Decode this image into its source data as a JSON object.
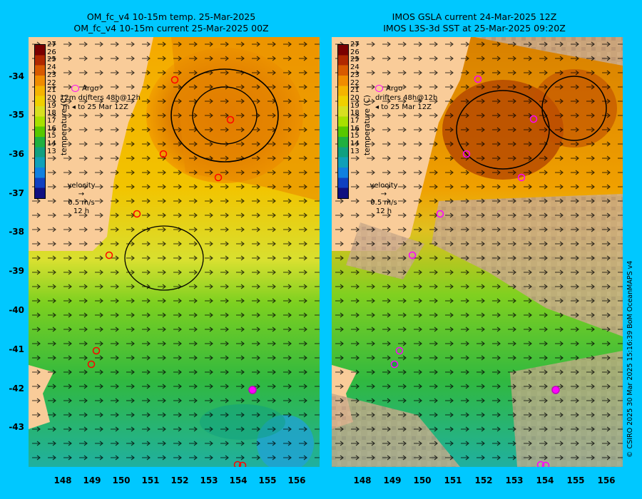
{
  "left_panel": {
    "title_line1": "OM_fc_v4  10-15m temp. 25-Mar-2025",
    "title_line2": "OM_fc_v4  10-15m current 25-Mar-2025 00Z"
  },
  "right_panel": {
    "title_line1": "IMOS GSLA current 24-Mar-2025 12Z",
    "title_line2": "IMOS L3S-3d SST at 25-Mar-2025 09:20Z"
  },
  "axes": {
    "y_ticks": [
      "-34",
      "-35",
      "-36",
      "-37",
      "-38",
      "-39",
      "-40",
      "-41",
      "-42",
      "-43"
    ],
    "x_ticks": [
      "148",
      "149",
      "150",
      "151",
      "152",
      "153",
      "154",
      "155",
      "156"
    ]
  },
  "colorbar": {
    "ticks": [
      "27",
      "26",
      "25",
      "24",
      "23",
      "22",
      "21",
      "20",
      "19",
      "18",
      "17",
      "16",
      "15",
      "14",
      "13"
    ],
    "label": "temperature (C)",
    "colors": [
      "#7a0000",
      "#b02800",
      "#d85a00",
      "#f08c00",
      "#f5b400",
      "#f0d000",
      "#d8e020",
      "#a8e000",
      "#58c800",
      "#20b040",
      "#10a080",
      "#10a0b8",
      "#1080e0",
      "#1040c0",
      "#101080"
    ]
  },
  "legend": {
    "argo": "Argo",
    "drifters": "drifters 48h@12h",
    "drifters_to": "to 25 Mar 12Z",
    "m12": "12m",
    "m": "m"
  },
  "velocity": {
    "title": "velocity",
    "speed": "0.5 m/s",
    "time": "12 h"
  },
  "credit": "© CSIRO 2025   30 Mar 2025 15:16:39 BoM OceanMAPS v4",
  "colors": {
    "background": "#00c8ff",
    "land": "#f9cc99",
    "no_data": "#c8a888",
    "argo_marker": "#ff00ff",
    "drifter_marker": "#ff0000"
  }
}
